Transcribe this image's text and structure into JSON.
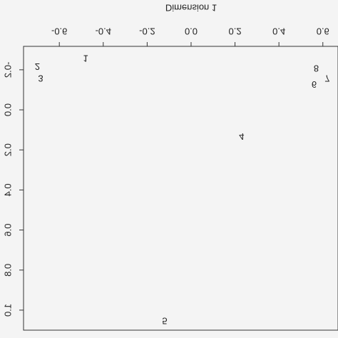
{
  "chart_data": {
    "type": "scatter",
    "x_label": "Dimension 1",
    "labels": [
      "1",
      "2",
      "3",
      "4",
      "5",
      "6",
      "7",
      "8"
    ],
    "x": [
      -0.48,
      -0.7,
      -0.685,
      0.23,
      -0.12,
      0.56,
      0.62,
      0.57
    ],
    "y": [
      -0.26,
      -0.22,
      -0.16,
      0.13,
      1.05,
      -0.13,
      -0.16,
      -0.21
    ],
    "xlim": [
      -0.763,
      0.669
    ],
    "ylim": [
      -0.317,
      1.1
    ],
    "xticks": [
      -0.6,
      -0.4,
      -0.2,
      {
        "value": 0,
        "label": "0.0"
      },
      0.2,
      0.4,
      0.6
    ],
    "yticks": [
      -0.2,
      {
        "value": 0,
        "label": "0.0"
      },
      0.2,
      0.4,
      0.6,
      0.8,
      {
        "value": 1,
        "label": "1.0"
      }
    ],
    "color": "#222222"
  }
}
